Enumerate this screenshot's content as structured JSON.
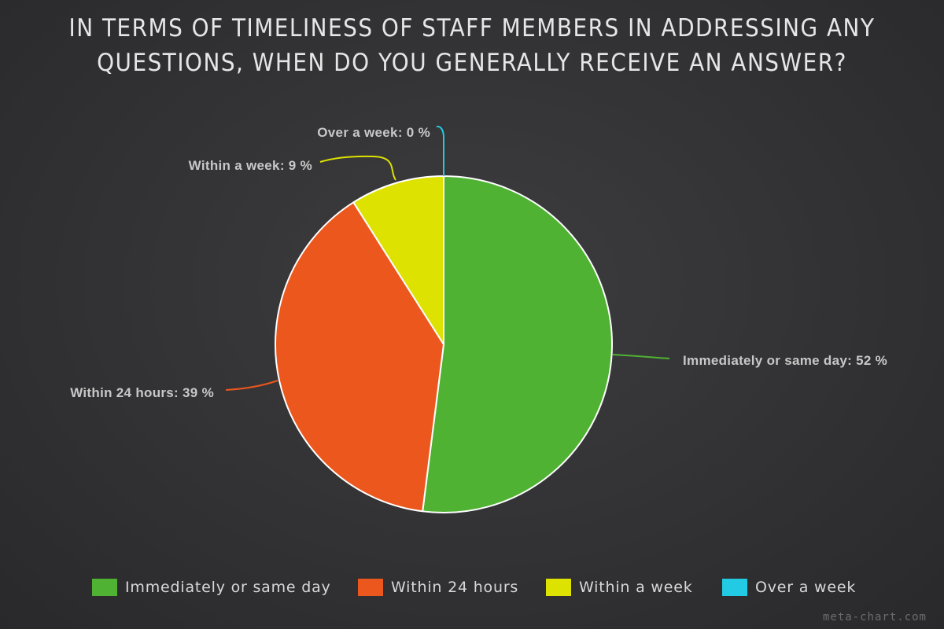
{
  "title_lines": [
    "IN TERMS OF TIMELINESS OF STAFF MEMBERS IN ADDRESSING ANY",
    "QUESTIONS, WHEN DO YOU GENERALLY RECEIVE AN ANSWER?"
  ],
  "chart_data": {
    "type": "pie",
    "title": "IN TERMS OF TIMELINESS OF STAFF MEMBERS IN ADDRESSING ANY QUESTIONS, WHEN DO YOU GENERALLY RECEIVE AN ANSWER?",
    "categories": [
      "Immediately or same day",
      "Within 24 hours",
      "Within a week",
      "Over a week"
    ],
    "values": [
      52,
      39,
      9,
      0
    ],
    "unit": "%",
    "colors": [
      "#4fb233",
      "#ec571e",
      "#dde200",
      "#22cbe3"
    ],
    "slice_labels": [
      "Immediately or same day: 52 %",
      "Within 24 hours: 39 %",
      "Within a week: 9 %",
      "Over a week: 0 %"
    ],
    "legend_position": "bottom",
    "legend_labels": [
      "Immediately or same day",
      "Within 24 hours",
      "Within a week",
      "Over a week"
    ]
  },
  "watermark": "meta-chart.com"
}
